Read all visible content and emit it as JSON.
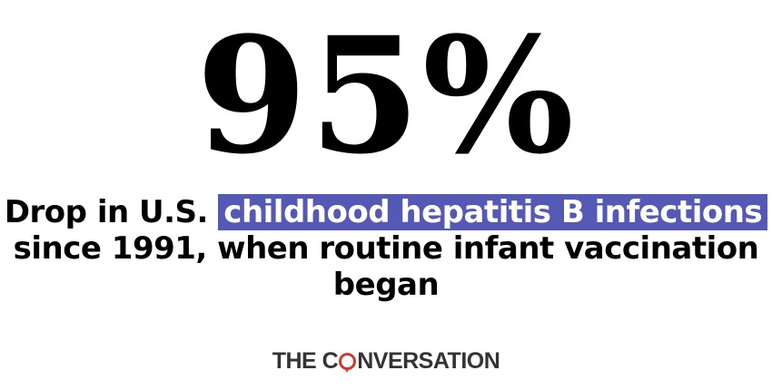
{
  "headline": {
    "value": "95%"
  },
  "caption": {
    "part1": "Drop in U.S. ",
    "highlight": "childhood hepatitis B infections",
    "part2": " since 1991, when routine infant vaccination began"
  },
  "colors": {
    "highlight": "#5359b5",
    "logo_accent": "#d8352a",
    "logo_text": "#333333"
  },
  "logo": {
    "prefix": "THE C",
    "suffix": "NVERSATION",
    "icon": "speech-bubble-o-icon"
  }
}
